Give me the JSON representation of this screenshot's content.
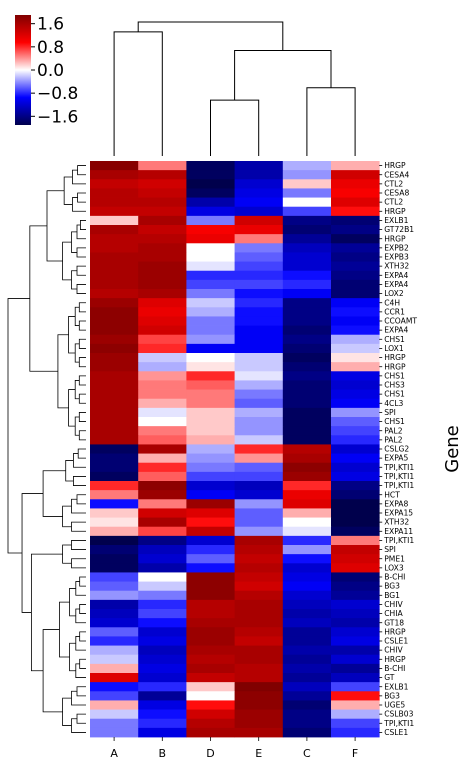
{
  "chart_data": {
    "type": "heatmap",
    "columns": [
      "A",
      "B",
      "D",
      "E",
      "C",
      "F"
    ],
    "rows": [
      "HRGP",
      "CESA4",
      "CTL2",
      "CESA8",
      "CTL2",
      "HRGP",
      "EXLB1",
      "GT72B1",
      "HRGP",
      "EXPB2",
      "EXPB3",
      "XTH32",
      "EXPA4",
      "EXPA4",
      "LOX2",
      "C4H",
      "CCR1",
      "CCOAMT",
      "EXPA4",
      "CHS1",
      "LOX1",
      "HRGP",
      "HRGP",
      "CHS1",
      "CHS3",
      "CHS1",
      "4CL3",
      "SPI",
      "CHS1",
      "PAL2",
      "PAL2",
      "CSLG2",
      "EXPA5",
      "TPI,KTI1",
      "TPI,KTI1",
      "TPI,KTI1",
      "HCT",
      "EXPA8",
      "EXPA15",
      "XTH32",
      "EXPA11",
      "TPI,KTI1",
      "SPI",
      "PME1",
      "LOX3",
      "B-CHI",
      "BG3",
      "BG1",
      "CHIV",
      "CHIA",
      "GT18",
      "HRGP",
      "CSLE1",
      "CHIV",
      "HRGP",
      "B-CHI",
      "GT",
      "EXLB1",
      "BG3",
      "UGE5",
      "CSLB03",
      "TPI,KTI1",
      "CSLE1"
    ],
    "ylabel": "Gene",
    "colorbar": {
      "ticks": [
        "1.6",
        "0.8",
        "0.0",
        "−0.8",
        "−1.6"
      ],
      "range": [
        -1.9,
        1.9
      ]
    },
    "colormap": "seismic",
    "values": [
      [
        1.85,
        0.5,
        -1.8,
        -1.4,
        -0.3,
        0.3
      ],
      [
        1.6,
        1.5,
        -1.8,
        -1.4,
        -0.4,
        1.3
      ],
      [
        1.4,
        1.3,
        -1.9,
        -1.2,
        0.2,
        1.1
      ],
      [
        1.5,
        1.4,
        -1.8,
        -1.1,
        -0.5,
        1.0
      ],
      [
        1.5,
        1.5,
        -1.4,
        -1.0,
        0.0,
        1.2
      ],
      [
        1.4,
        1.4,
        -1.1,
        -1.2,
        -0.7,
        0.9
      ],
      [
        0.2,
        1.6,
        -0.5,
        1.3,
        -1.6,
        -1.7
      ],
      [
        1.6,
        1.4,
        1.0,
        1.1,
        -1.7,
        -1.6
      ],
      [
        1.5,
        1.5,
        1.1,
        0.5,
        -1.5,
        -1.8
      ],
      [
        1.5,
        1.6,
        0.0,
        -0.5,
        -1.3,
        -1.5
      ],
      [
        1.6,
        1.6,
        0.0,
        -0.6,
        -1.2,
        -1.6
      ],
      [
        1.6,
        1.7,
        -0.1,
        -0.7,
        -1.2,
        -1.5
      ],
      [
        1.6,
        1.7,
        -0.8,
        -0.8,
        -0.9,
        -1.6
      ],
      [
        1.6,
        1.7,
        -0.7,
        -0.7,
        -0.8,
        -1.7
      ],
      [
        1.5,
        1.6,
        -0.5,
        -0.9,
        -1.0,
        -1.7
      ],
      [
        1.7,
        1.2,
        -0.2,
        -0.8,
        -1.6,
        -1.0
      ],
      [
        1.8,
        1.1,
        -0.3,
        -0.9,
        -1.6,
        -0.9
      ],
      [
        1.8,
        1.2,
        -0.5,
        -0.9,
        -1.6,
        -1.0
      ],
      [
        1.8,
        1.3,
        -0.5,
        -1.0,
        -1.7,
        -0.9
      ],
      [
        1.7,
        0.7,
        -0.4,
        -1.0,
        -1.6,
        -0.3
      ],
      [
        1.8,
        0.8,
        -1.0,
        -1.0,
        -1.7,
        -0.2
      ],
      [
        1.7,
        -0.2,
        0.0,
        -0.2,
        -1.8,
        0.1
      ],
      [
        1.7,
        -0.3,
        0.1,
        -0.2,
        -1.7,
        0.3
      ],
      [
        1.6,
        0.4,
        0.8,
        -0.1,
        -1.6,
        -1.1
      ],
      [
        1.6,
        0.5,
        0.6,
        -0.3,
        -1.7,
        -1.2
      ],
      [
        1.6,
        0.5,
        0.5,
        -0.5,
        -1.7,
        -1.1
      ],
      [
        1.6,
        0.3,
        0.5,
        -0.6,
        -1.7,
        -1.0
      ],
      [
        1.6,
        -0.1,
        0.2,
        -0.3,
        -1.8,
        -0.4
      ],
      [
        1.6,
        0.0,
        0.2,
        -0.4,
        -1.8,
        -0.6
      ],
      [
        1.6,
        0.5,
        0.2,
        -0.4,
        -1.8,
        -0.7
      ],
      [
        1.6,
        0.6,
        0.3,
        -0.2,
        -1.8,
        -0.8
      ],
      [
        -1.8,
        1.6,
        -0.3,
        0.8,
        1.5,
        -1.2
      ],
      [
        -1.7,
        0.3,
        -0.4,
        0.4,
        1.6,
        -1.0
      ],
      [
        -1.7,
        0.8,
        -0.5,
        -0.6,
        1.8,
        -1.2
      ],
      [
        -1.8,
        0.6,
        -0.7,
        -0.7,
        1.7,
        -1.1
      ],
      [
        0.8,
        1.8,
        -1.2,
        -1.3,
        0.8,
        -1.6
      ],
      [
        0.5,
        1.7,
        -1.0,
        -1.2,
        1.1,
        -1.7
      ],
      [
        -0.9,
        0.5,
        1.7,
        -0.4,
        1.2,
        -1.9
      ],
      [
        0.2,
        1.3,
        1.2,
        -0.6,
        0.3,
        -1.9
      ],
      [
        0.1,
        1.6,
        0.9,
        -0.6,
        0.0,
        -1.9
      ],
      [
        0.3,
        0.7,
        1.4,
        -0.4,
        -0.1,
        -1.8
      ],
      [
        -1.9,
        -1.6,
        -1.2,
        1.6,
        -0.8,
        0.5
      ],
      [
        -1.7,
        -1.3,
        -0.8,
        1.5,
        -0.4,
        1.4
      ],
      [
        -1.8,
        -1.2,
        -0.6,
        1.4,
        -0.9,
        1.3
      ],
      [
        -1.8,
        -1.4,
        -0.9,
        1.5,
        -1.2,
        1.2
      ],
      [
        -0.7,
        0.0,
        1.8,
        1.4,
        -1.1,
        -1.7
      ],
      [
        -0.6,
        -0.2,
        1.8,
        1.3,
        -1.0,
        -1.6
      ],
      [
        -0.4,
        -0.5,
        1.8,
        1.5,
        -1.2,
        -1.5
      ],
      [
        -1.4,
        -0.8,
        1.5,
        1.6,
        -1.3,
        -1.2
      ],
      [
        -1.3,
        -0.7,
        1.5,
        1.6,
        -1.4,
        -1.3
      ],
      [
        -1.2,
        -0.9,
        1.6,
        1.6,
        -1.3,
        -1.4
      ],
      [
        -0.6,
        -1.2,
        1.7,
        1.5,
        -1.5,
        -1.2
      ],
      [
        -0.8,
        -1.1,
        1.7,
        1.4,
        -1.5,
        -1.1
      ],
      [
        -0.3,
        -1.3,
        1.6,
        1.6,
        -1.4,
        -1.4
      ],
      [
        -0.2,
        -1.2,
        1.5,
        1.6,
        -1.5,
        -1.2
      ],
      [
        0.3,
        -1.1,
        1.6,
        1.5,
        -1.4,
        -1.5
      ],
      [
        1.2,
        -1.2,
        1.4,
        1.5,
        -1.5,
        -1.3
      ],
      [
        -0.9,
        -0.8,
        0.2,
        1.9,
        -1.3,
        -0.7
      ],
      [
        -0.7,
        -1.5,
        0.0,
        1.8,
        -1.5,
        0.9
      ],
      [
        0.3,
        -1.1,
        0.9,
        1.8,
        -1.7,
        0.3
      ],
      [
        -0.2,
        -0.9,
        1.3,
        1.7,
        -1.6,
        -0.3
      ],
      [
        -0.5,
        -0.8,
        1.5,
        1.7,
        -1.6,
        -0.7
      ],
      [
        -0.5,
        -1.1,
        1.6,
        1.6,
        -1.7,
        -0.8
      ]
    ]
  }
}
